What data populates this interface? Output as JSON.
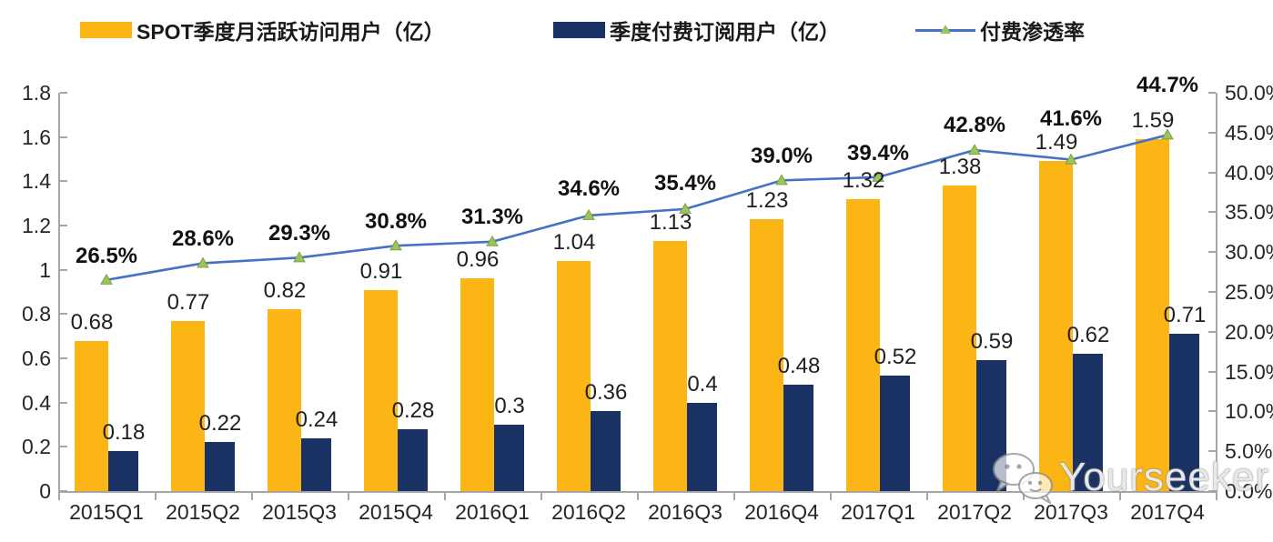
{
  "legend": {
    "items": [
      {
        "label": "SPOT季度月活跃访问用户（亿）",
        "swatch": "bar",
        "color": "#FBB616"
      },
      {
        "label": "季度付费订阅用户（亿）",
        "swatch": "bar",
        "color": "#1A3263"
      },
      {
        "label": "付费渗透率",
        "swatch": "line",
        "color": "#4472C4",
        "marker_color": "#9DC35E"
      }
    ]
  },
  "watermark": {
    "text": "Yourseeker",
    "icon": "wechat-icon"
  },
  "chart_data": {
    "type": "combo-bar-line",
    "categories": [
      "2015Q1",
      "2015Q2",
      "2015Q3",
      "2015Q4",
      "2016Q1",
      "2016Q2",
      "2016Q3",
      "2016Q4",
      "2017Q1",
      "2017Q2",
      "2017Q3",
      "2017Q4"
    ],
    "series": [
      {
        "name": "SPOT季度月活跃访问用户（亿）",
        "type": "bar",
        "axis": "left",
        "color": "#FBB616",
        "values": [
          0.68,
          0.77,
          0.82,
          0.91,
          0.96,
          1.04,
          1.13,
          1.23,
          1.32,
          1.38,
          1.49,
          1.59
        ],
        "labels": [
          "0.68",
          "0.77",
          "0.82",
          "0.91",
          "0.96",
          "1.04",
          "1.13",
          "1.23",
          "1.32",
          "1.38",
          "1.49",
          "1.59"
        ]
      },
      {
        "name": "季度付费订阅用户（亿）",
        "type": "bar",
        "axis": "left",
        "color": "#1A3263",
        "values": [
          0.18,
          0.22,
          0.24,
          0.28,
          0.3,
          0.36,
          0.4,
          0.48,
          0.52,
          0.59,
          0.62,
          0.71
        ],
        "labels": [
          "0.18",
          "0.22",
          "0.24",
          "0.28",
          "0.3",
          "0.36",
          "0.4",
          "0.48",
          "0.52",
          "0.59",
          "0.62",
          "0.71"
        ]
      },
      {
        "name": "付费渗透率",
        "type": "line",
        "axis": "right",
        "color": "#4472C4",
        "marker": "triangle",
        "marker_color": "#9DC35E",
        "marker_stroke": "#7BA23F",
        "values": [
          26.5,
          28.6,
          29.3,
          30.8,
          31.3,
          34.6,
          35.4,
          39.0,
          39.4,
          42.8,
          41.6,
          44.7
        ],
        "labels": [
          "26.5%",
          "28.6%",
          "29.3%",
          "30.8%",
          "31.3%",
          "34.6%",
          "35.4%",
          "39.0%",
          "39.4%",
          "42.8%",
          "41.6%",
          "44.7%"
        ],
        "label_dy": [
          -26,
          -26,
          -26,
          -26,
          -27,
          -29,
          -28,
          -26,
          -26,
          -27,
          -45,
          -54
        ]
      }
    ],
    "left_axis": {
      "min": 0,
      "max": 1.8,
      "step": 0.2,
      "tick_labels": [
        "0",
        "0.2",
        "0.4",
        "0.6",
        "0.8",
        "1",
        "1.2",
        "1.4",
        "1.6",
        "1.8"
      ]
    },
    "right_axis": {
      "min": 0,
      "max": 50,
      "step": 5,
      "tick_labels": [
        "0.0%",
        "5.0%",
        "10.0%",
        "15.0%",
        "20.0%",
        "25.0%",
        "30.0%",
        "35.0%",
        "40.0%",
        "45.0%",
        "50.0%"
      ]
    },
    "grid": false,
    "legend_position": "top"
  }
}
